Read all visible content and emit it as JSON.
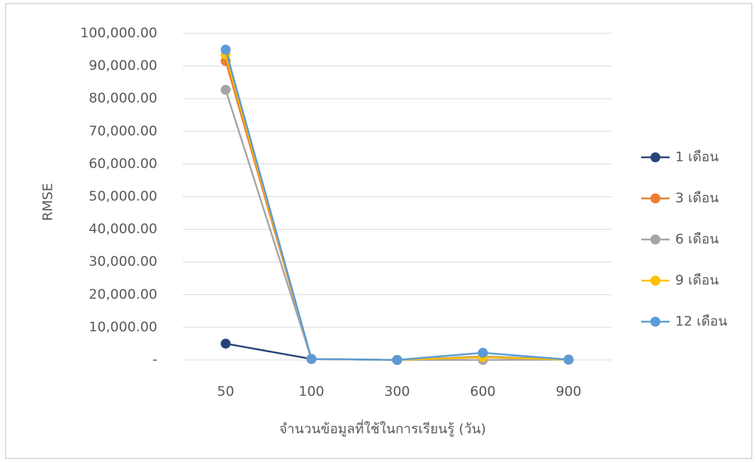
{
  "chart_data": {
    "type": "line",
    "y_label": "RMSE",
    "x_label": "จำนวนข้อมูลที่ใช้ในการเรียนรู้ (วัน)",
    "categories": [
      "50",
      "100",
      "300",
      "600",
      "900"
    ],
    "series": [
      {
        "name": "1 เดือน",
        "color": "#264478",
        "values": [
          5000,
          300,
          0,
          1000,
          100
        ]
      },
      {
        "name": "3 เดือน",
        "color": "#ed7d31",
        "values": [
          91500,
          300,
          0,
          800,
          100
        ]
      },
      {
        "name": "6 เดือน",
        "color": "#a5a5a5",
        "values": [
          82700,
          300,
          0,
          0,
          100
        ]
      },
      {
        "name": "9 เดือน",
        "color": "#ffc000",
        "values": [
          93500,
          300,
          0,
          900,
          100
        ]
      },
      {
        "name": "12 เดือน",
        "color": "#5b9bd5",
        "values": [
          95000,
          300,
          0,
          2200,
          100
        ]
      }
    ],
    "ylim": [
      0,
      100000
    ],
    "yticks": [
      {
        "value": 0,
        "label": "-"
      },
      {
        "value": 10000,
        "label": "10,000.00"
      },
      {
        "value": 20000,
        "label": "20,000.00"
      },
      {
        "value": 30000,
        "label": "30,000.00"
      },
      {
        "value": 40000,
        "label": "40,000.00"
      },
      {
        "value": 50000,
        "label": "50,000.00"
      },
      {
        "value": 60000,
        "label": "60,000.00"
      },
      {
        "value": 70000,
        "label": "70,000.00"
      },
      {
        "value": 80000,
        "label": "80,000.00"
      },
      {
        "value": 90000,
        "label": "90,000.00"
      },
      {
        "value": 100000,
        "label": "100,000.00"
      }
    ],
    "grid": true,
    "legend": "right"
  }
}
